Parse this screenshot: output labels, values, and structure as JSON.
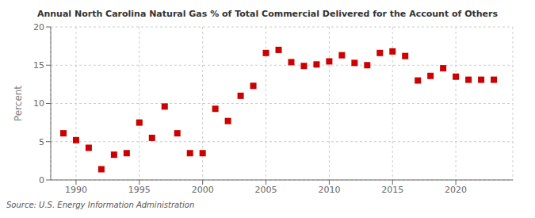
{
  "chart_data": {
    "type": "scatter",
    "title": "Annual North Carolina Natural Gas % of Total Commercial Delivered for the Account of Others",
    "y_label": "Percent",
    "annotation": "Source: U.S. Energy Information Administration",
    "x": [
      1989,
      1990,
      1991,
      1992,
      1993,
      1994,
      1995,
      1996,
      1997,
      1998,
      1999,
      2000,
      2001,
      2002,
      2003,
      2004,
      2005,
      2006,
      2007,
      2008,
      2009,
      2010,
      2011,
      2012,
      2013,
      2014,
      2015,
      2016,
      2017,
      2018,
      2019,
      2020,
      2021,
      2022,
      2023
    ],
    "values": [
      6.1,
      5.2,
      4.2,
      1.4,
      3.3,
      3.5,
      7.5,
      5.5,
      9.6,
      6.1,
      3.5,
      3.5,
      9.3,
      7.7,
      11.0,
      12.3,
      16.6,
      17.0,
      15.4,
      14.9,
      15.1,
      15.5,
      16.3,
      15.3,
      15.0,
      16.6,
      16.8,
      16.2,
      13.0,
      13.6,
      14.6,
      13.5,
      13.1,
      13.1,
      13.1
    ],
    "color": "#cc0000",
    "marker": "square",
    "xlim": [
      1988.0,
      2024.5
    ],
    "ylim": [
      0,
      20
    ],
    "xticks": [
      1990,
      1995,
      2000,
      2005,
      2010,
      2015,
      2020
    ],
    "yticks": [
      0,
      5,
      10,
      15,
      20
    ],
    "grid": true
  }
}
